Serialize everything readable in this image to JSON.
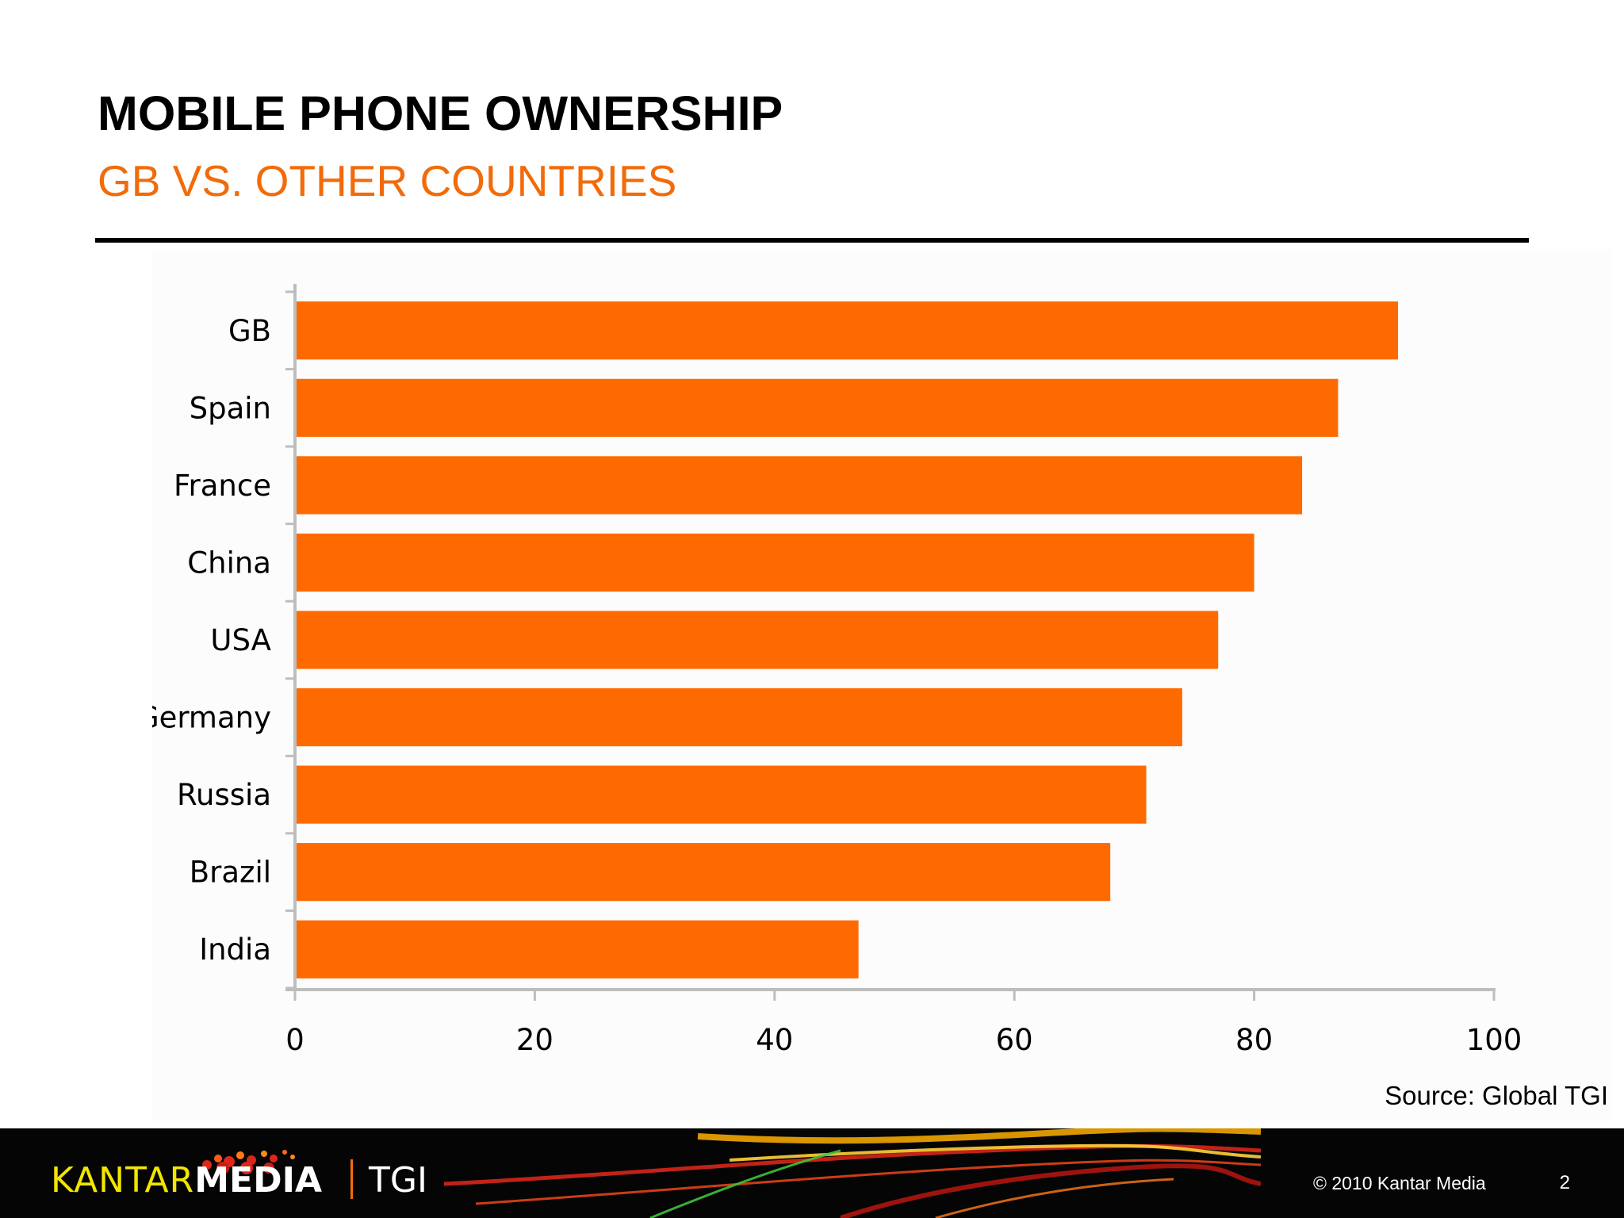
{
  "slide": {
    "title": "MOBILE PHONE OWNERSHIP",
    "subtitle": "GB VS. OTHER COUNTRIES",
    "source": "Source: Global TGI"
  },
  "footer": {
    "brand_kantar": "KANTAR",
    "brand_media": "MEDIA",
    "brand_product": "TGI",
    "copyright": "© 2010 Kantar Media",
    "page_number": "2"
  },
  "colors": {
    "bar": "#ff6a00",
    "subtitle": "#f26b0a",
    "axis": "#bdbdbd"
  },
  "chart_data": {
    "type": "bar",
    "orientation": "horizontal",
    "title": "",
    "xlabel": "",
    "ylabel": "",
    "categories": [
      "GB",
      "Spain",
      "France",
      "China",
      "USA",
      "Germany",
      "Russia",
      "Brazil",
      "India"
    ],
    "values": [
      92,
      87,
      84,
      80,
      77,
      74,
      71,
      68,
      47
    ],
    "xlim": [
      0,
      100
    ],
    "xticks": [
      0,
      20,
      40,
      60,
      80,
      100
    ],
    "grid": false,
    "legend": "none"
  }
}
